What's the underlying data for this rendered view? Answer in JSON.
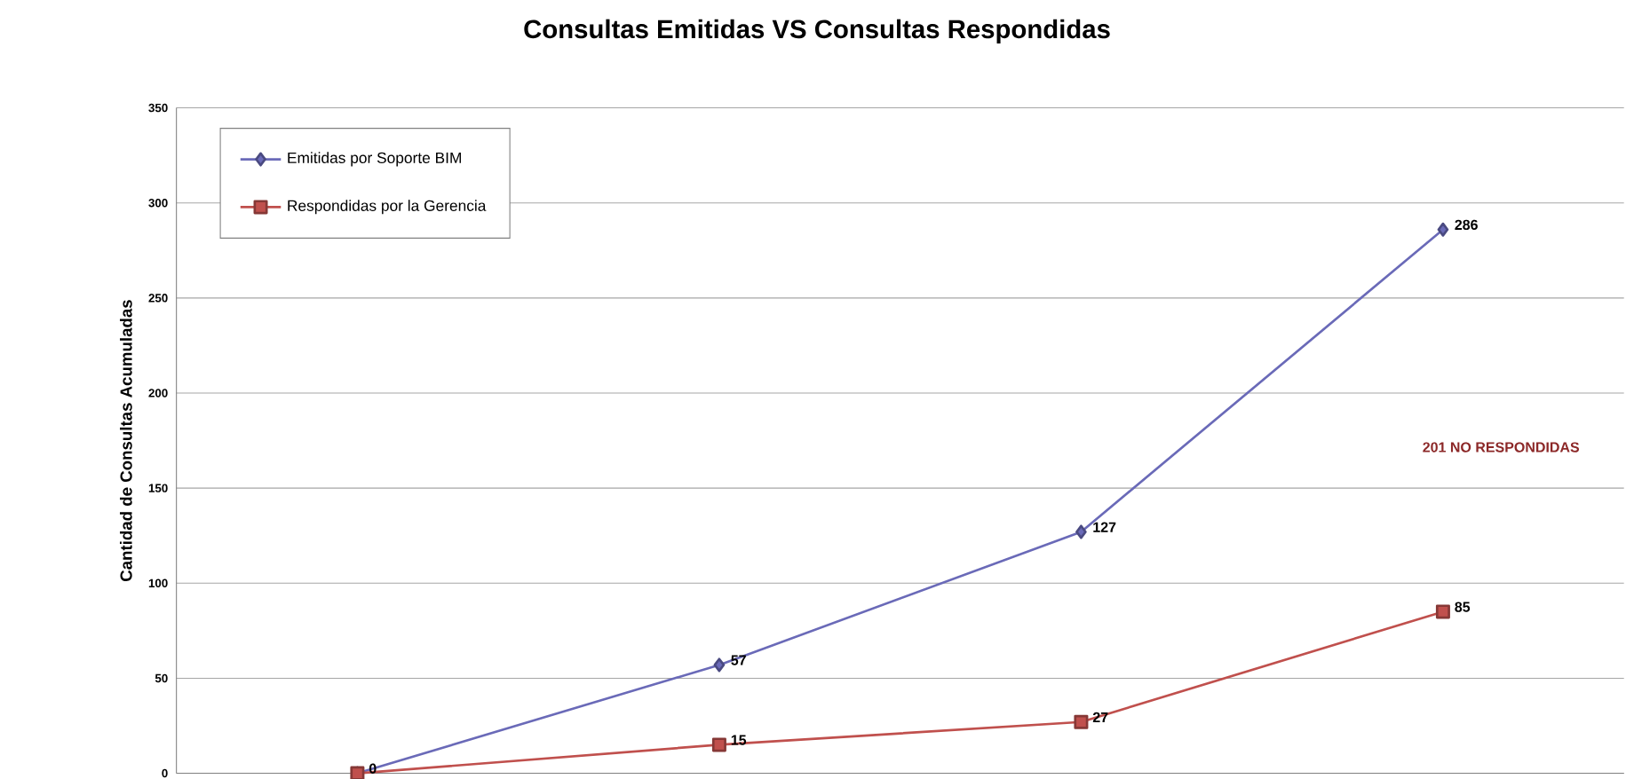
{
  "chart_data": {
    "type": "line",
    "title": "Consultas Emitidas VS Consultas Respondidas",
    "ylabel": "Cantidad de Consultas Acumuladas",
    "categories": [
      null,
      null,
      null,
      null
    ],
    "series": [
      {
        "name": "Emitidas por Soporte BIM",
        "color": "#6a6ab8",
        "marker": "diamond",
        "values": [
          0,
          57,
          127,
          286
        ],
        "value_labels": [
          null,
          "57",
          "127",
          "286"
        ]
      },
      {
        "name": "Respondidas por la Gerencia",
        "color": "#c0504d",
        "marker": "square",
        "values": [
          0,
          15,
          27,
          85
        ],
        "value_labels": [
          "0",
          "15",
          "27",
          "85"
        ]
      }
    ],
    "ylim": [
      0,
      350
    ],
    "yticks": [
      0,
      50,
      100,
      150,
      200,
      250,
      300,
      350
    ],
    "grid": "y",
    "legend": "top left",
    "annotations": [
      "201 NO RESPONDIDAS"
    ]
  }
}
